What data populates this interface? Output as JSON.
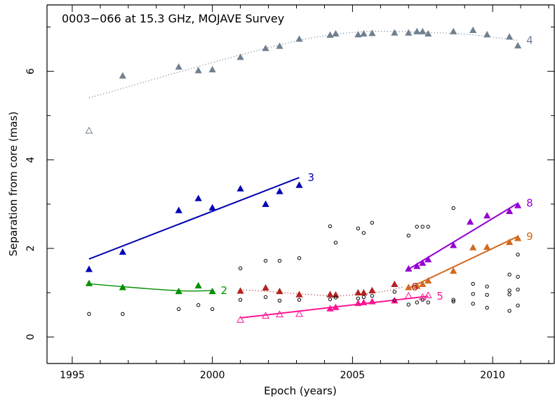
{
  "chart_data": {
    "type": "scatter",
    "title": "0003−066 at 15.3 GHz, MOJAVE Survey",
    "xlabel": "Epoch (years)",
    "ylabel": "Separation from core (mas)",
    "xlim": [
      1994.1,
      2012.2
    ],
    "ylim": [
      -0.6,
      7.5
    ],
    "xticks": [
      1995,
      2000,
      2005,
      2010
    ],
    "yticks": [
      0,
      2,
      4,
      6
    ],
    "series": [
      {
        "name": "4",
        "color": "#708090",
        "marker": "filled-triangle",
        "points": [
          [
            1996.8,
            5.9
          ],
          [
            1998.8,
            6.1
          ],
          [
            1999.5,
            6.02
          ],
          [
            2000.0,
            6.04
          ],
          [
            2001.0,
            6.32
          ],
          [
            2001.9,
            6.52
          ],
          [
            2002.4,
            6.57
          ],
          [
            2003.1,
            6.73
          ],
          [
            2004.2,
            6.82
          ],
          [
            2004.4,
            6.85
          ],
          [
            2005.2,
            6.83
          ],
          [
            2005.4,
            6.85
          ],
          [
            2005.7,
            6.86
          ],
          [
            2006.5,
            6.87
          ],
          [
            2007.0,
            6.87
          ],
          [
            2007.3,
            6.9
          ],
          [
            2007.5,
            6.9
          ],
          [
            2007.7,
            6.85
          ],
          [
            2008.6,
            6.9
          ],
          [
            2009.3,
            6.93
          ],
          [
            2009.8,
            6.83
          ],
          [
            2010.6,
            6.78
          ],
          [
            2010.9,
            6.58
          ]
        ],
        "extra_points": [
          [
            1995.6,
            4.66
          ]
        ],
        "extra_marker": "open-triangle",
        "fit": "quadratic",
        "fit_style": "dotted",
        "fit_range": [
          1995.6,
          2010.9
        ],
        "fit_points": [
          [
            1995.6,
            5.4
          ],
          [
            2003.5,
            6.75
          ],
          [
            2008.0,
            6.87
          ],
          [
            2010.9,
            6.7
          ]
        ]
      },
      {
        "name": "3",
        "color": "#0000b4",
        "marker": "filled-triangle",
        "points": [
          [
            1995.6,
            1.53
          ],
          [
            1996.8,
            1.92
          ],
          [
            1998.8,
            2.86
          ],
          [
            1999.5,
            3.13
          ],
          [
            2000.0,
            2.92
          ],
          [
            2001.0,
            3.35
          ],
          [
            2001.9,
            3.0
          ],
          [
            2002.4,
            3.29
          ],
          [
            2003.1,
            3.43
          ]
        ],
        "fit": "linear",
        "fit_style": "solid",
        "fit_points": [
          [
            1995.6,
            1.76
          ],
          [
            2003.1,
            3.6
          ]
        ]
      },
      {
        "name": "8",
        "color": "#9400d3",
        "marker": "filled-triangle",
        "points": [
          [
            2007.0,
            1.54
          ],
          [
            2007.3,
            1.6
          ],
          [
            2007.5,
            1.67
          ],
          [
            2007.7,
            1.75
          ],
          [
            2008.6,
            2.07
          ],
          [
            2009.2,
            2.6
          ],
          [
            2009.8,
            2.74
          ],
          [
            2010.6,
            2.84
          ],
          [
            2010.9,
            2.97
          ]
        ],
        "fit": "linear",
        "fit_style": "solid",
        "fit_points": [
          [
            2007.0,
            1.53
          ],
          [
            2010.9,
            3.02
          ]
        ]
      },
      {
        "name": "9",
        "color": "#d2691e",
        "marker": "filled-triangle",
        "points": [
          [
            2007.0,
            1.12
          ],
          [
            2007.3,
            1.15
          ],
          [
            2007.5,
            1.19
          ],
          [
            2007.7,
            1.27
          ],
          [
            2008.6,
            1.49
          ],
          [
            2009.3,
            2.02
          ],
          [
            2009.8,
            2.03
          ],
          [
            2010.6,
            2.14
          ],
          [
            2010.9,
            2.23
          ]
        ],
        "fit": "linear",
        "fit_style": "solid",
        "fit_points": [
          [
            2007.0,
            1.1
          ],
          [
            2010.9,
            2.27
          ]
        ]
      },
      {
        "name": "2",
        "color": "#009000",
        "marker": "filled-triangle",
        "points": [
          [
            1995.6,
            1.21
          ],
          [
            1996.8,
            1.12
          ],
          [
            1998.8,
            1.03
          ],
          [
            1999.5,
            1.16
          ],
          [
            2000.0,
            1.03
          ]
        ],
        "fit": "quadratic",
        "fit_style": "solid",
        "fit_points": [
          [
            1995.6,
            1.2
          ],
          [
            1997.5,
            1.1
          ],
          [
            1999.0,
            1.04
          ],
          [
            2000.0,
            1.05
          ]
        ]
      },
      {
        "name": "6",
        "color": "#b22222",
        "marker": "filled-triangle",
        "points": [
          [
            2001.0,
            1.04
          ],
          [
            2001.9,
            1.11
          ],
          [
            2002.4,
            1.03
          ],
          [
            2003.1,
            0.96
          ],
          [
            2004.2,
            0.96
          ],
          [
            2004.4,
            0.95
          ],
          [
            2005.2,
            1.0
          ],
          [
            2005.4,
            1.0
          ],
          [
            2005.7,
            1.05
          ],
          [
            2006.5,
            1.19
          ]
        ],
        "fit": "quadratic",
        "fit_style": "dotted",
        "fit_points": [
          [
            2001.0,
            1.07
          ],
          [
            2003.0,
            0.98
          ],
          [
            2004.5,
            0.93
          ],
          [
            2006.0,
            1.02
          ],
          [
            2006.8,
            1.13
          ]
        ]
      },
      {
        "name": "5",
        "color": "#ff1493",
        "marker": "open-triangle",
        "points": [
          [
            2001.0,
            0.39
          ],
          [
            2001.9,
            0.48
          ],
          [
            2002.4,
            0.51
          ],
          [
            2003.1,
            0.52
          ],
          [
            2007.0,
            0.93
          ],
          [
            2007.5,
            0.9
          ],
          [
            2007.7,
            0.94
          ]
        ],
        "extra_points": [
          [
            2004.2,
            0.64
          ],
          [
            2004.4,
            0.67
          ],
          [
            2005.2,
            0.76
          ],
          [
            2005.4,
            0.78
          ],
          [
            2005.7,
            0.8
          ],
          [
            2006.5,
            0.82
          ]
        ],
        "extra_marker": "filled-triangle",
        "fit": "linear",
        "fit_style": "solid",
        "fit_points": [
          [
            2001.0,
            0.43
          ],
          [
            2007.7,
            0.92
          ]
        ]
      },
      {
        "name": "",
        "color": "#000000",
        "marker": "open-circle",
        "points": [
          [
            1995.6,
            0.52
          ],
          [
            1996.8,
            0.52
          ],
          [
            1998.8,
            0.63
          ],
          [
            1999.5,
            0.72
          ],
          [
            2000.0,
            0.63
          ],
          [
            2001.0,
            1.55
          ],
          [
            2001.0,
            0.84
          ],
          [
            2001.9,
            1.72
          ],
          [
            2001.9,
            0.9
          ],
          [
            2002.4,
            1.72
          ],
          [
            2002.4,
            0.82
          ],
          [
            2003.1,
            1.78
          ],
          [
            2003.1,
            0.84
          ],
          [
            2004.2,
            2.5
          ],
          [
            2004.2,
            0.85
          ],
          [
            2004.4,
            2.13
          ],
          [
            2004.4,
            0.89
          ],
          [
            2005.2,
            2.45
          ],
          [
            2005.2,
            0.87
          ],
          [
            2005.4,
            2.35
          ],
          [
            2005.4,
            0.9
          ],
          [
            2005.7,
            2.58
          ],
          [
            2005.7,
            0.93
          ],
          [
            2006.5,
            1.02
          ],
          [
            2006.5,
            0.83
          ],
          [
            2007.0,
            2.29
          ],
          [
            2007.0,
            0.73
          ],
          [
            2007.3,
            2.49
          ],
          [
            2007.3,
            0.78
          ],
          [
            2007.5,
            2.49
          ],
          [
            2007.5,
            0.84
          ],
          [
            2007.7,
            2.49
          ],
          [
            2007.7,
            0.78
          ],
          [
            2008.6,
            2.91
          ],
          [
            2008.6,
            0.84
          ],
          [
            2008.6,
            0.8
          ],
          [
            2009.3,
            1.2
          ],
          [
            2009.3,
            0.97
          ],
          [
            2009.3,
            0.75
          ],
          [
            2009.8,
            1.14
          ],
          [
            2009.8,
            0.95
          ],
          [
            2009.8,
            0.66
          ],
          [
            2010.6,
            1.41
          ],
          [
            2010.6,
            1.05
          ],
          [
            2010.6,
            0.96
          ],
          [
            2010.6,
            0.59
          ],
          [
            2010.9,
            1.86
          ],
          [
            2010.9,
            1.36
          ],
          [
            2010.9,
            1.07
          ],
          [
            2010.9,
            0.71
          ]
        ]
      }
    ],
    "grid": false,
    "legend": "none"
  }
}
